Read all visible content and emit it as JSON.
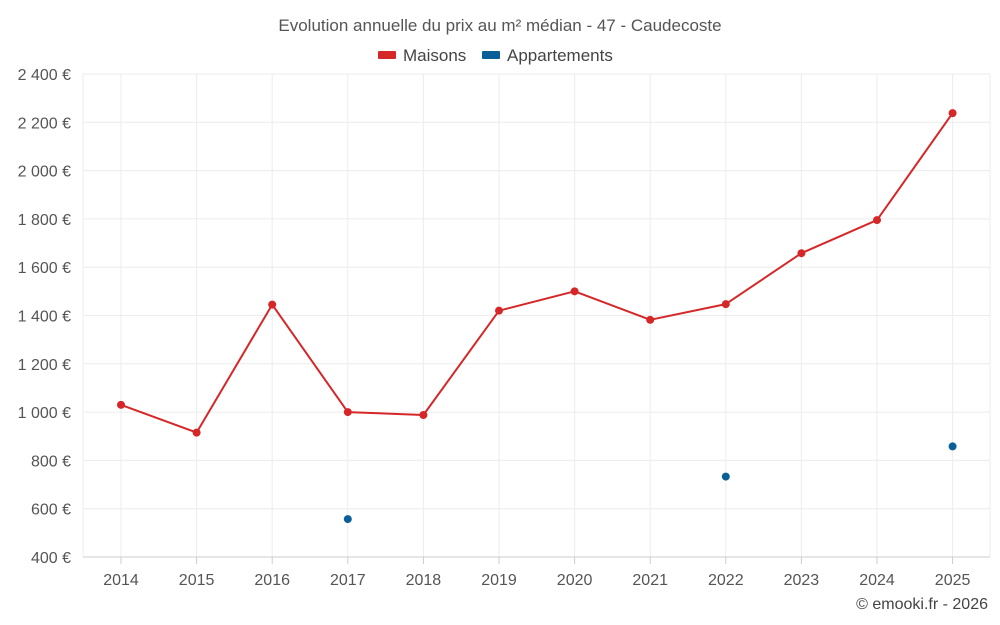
{
  "chart_data": {
    "type": "line",
    "title": "Evolution annuelle du prix au m² médian - 47 - Caudecoste",
    "categories": [
      "2014",
      "2015",
      "2016",
      "2017",
      "2018",
      "2019",
      "2020",
      "2021",
      "2022",
      "2023",
      "2024",
      "2025"
    ],
    "y_ticks": [
      400,
      600,
      800,
      1000,
      1200,
      1400,
      1600,
      1800,
      2000,
      2200,
      2400
    ],
    "y_tick_labels": [
      "400 €",
      "600 €",
      "800 €",
      "1 000 €",
      "1 200 €",
      "1 400 €",
      "1 600 €",
      "1 800 €",
      "2 000 €",
      "2 200 €",
      "2 400 €"
    ],
    "ylim": [
      400,
      2400
    ],
    "xlabel": "",
    "ylabel": "",
    "grid": true,
    "legend_position": "top-center",
    "series": [
      {
        "name": "Maisons",
        "color": "#d62728",
        "mode": "lines+markers",
        "values": [
          1030,
          915,
          1445,
          1000,
          988,
          1420,
          1500,
          1382,
          1447,
          1658,
          1795,
          2238
        ]
      },
      {
        "name": "Appartements",
        "color": "#0a5f99",
        "mode": "markers",
        "values": [
          null,
          null,
          null,
          557,
          null,
          null,
          null,
          null,
          733,
          null,
          null,
          858
        ]
      }
    ],
    "credit": "© emooki.fr - 2026"
  }
}
